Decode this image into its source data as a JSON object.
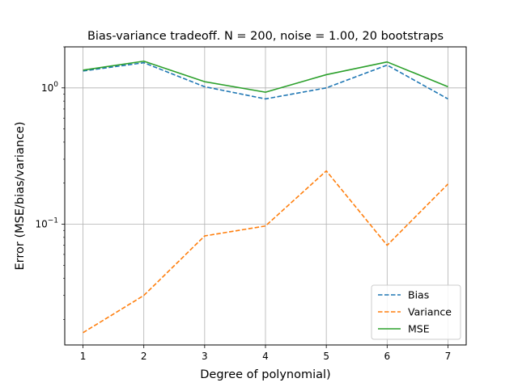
{
  "chart_data": {
    "type": "line",
    "title": "Bias-variance tradeoff. N = 200, noise = 1.00, 20 bootstraps",
    "xlabel": "Degree of polynomial)",
    "ylabel": "Error (MSE/bias/variance)",
    "x": [
      1,
      2,
      3,
      4,
      5,
      6,
      7
    ],
    "x_tick_labels": [
      "1",
      "2",
      "3",
      "4",
      "5",
      "6",
      "7"
    ],
    "y_scale": "log",
    "y_ticks": [
      {
        "value": 1.0,
        "base": "10",
        "exp": "0"
      },
      {
        "value": 0.1,
        "base": "10",
        "exp": "−1"
      }
    ],
    "xlim": [
      0.7,
      7.3
    ],
    "ylim": [
      0.013,
      2.0
    ],
    "grid": true,
    "legend_position": "lower right",
    "series": [
      {
        "name": "Bias",
        "color": "#1f77b4",
        "style": "dashed",
        "values": [
          1.33,
          1.53,
          1.02,
          0.83,
          1.0,
          1.47,
          0.83
        ]
      },
      {
        "name": "Variance",
        "color": "#ff7f0e",
        "style": "dashed",
        "values": [
          0.016,
          0.03,
          0.082,
          0.097,
          0.246,
          0.07,
          0.197
        ]
      },
      {
        "name": "MSE",
        "color": "#2ca02c",
        "style": "solid",
        "values": [
          1.35,
          1.57,
          1.11,
          0.93,
          1.25,
          1.55,
          1.02
        ]
      }
    ]
  }
}
